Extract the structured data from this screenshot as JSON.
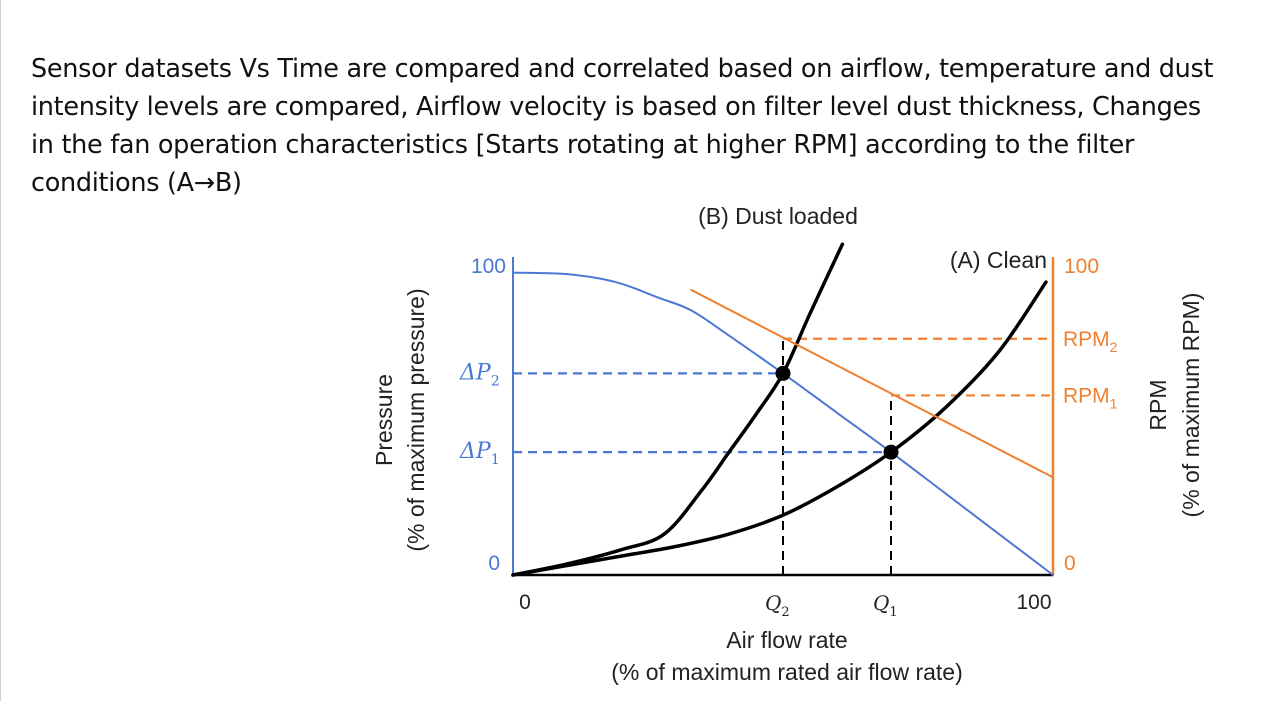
{
  "description": "Sensor datasets Vs Time are compared and correlated based on airflow, temperature and dust intensity levels are compared, Airflow velocity is based on filter level dust thickness, Changes in the fan operation characteristics [Starts rotating at higher RPM] according to the filter conditions (A→B)",
  "chart_data": {
    "type": "line",
    "xlabel": "Air flow rate",
    "xlabel_sub": "(% of maximum rated air flow rate)",
    "ylabel_left": "Pressure",
    "ylabel_left_sub": "(% of maximum pressure)",
    "ylabel_right": "RPM",
    "ylabel_right_sub": "(% of maximum RPM)",
    "xlim": [
      0,
      100
    ],
    "ylim_left": [
      0,
      100
    ],
    "ylim_right": [
      0,
      100
    ],
    "x_ticks": [
      "0",
      "100"
    ],
    "y_left_ticks": [
      "0",
      "100"
    ],
    "y_right_ticks": [
      "0",
      "100"
    ],
    "grid": false,
    "colors": {
      "pressure": "#4a78d4",
      "rpm": "#f08030",
      "system": "#000000"
    },
    "series": [
      {
        "name": "(B) Dust loaded",
        "color": "#000000",
        "points": [
          [
            0,
            0
          ],
          [
            10,
            3.5
          ],
          [
            20,
            8
          ],
          [
            28,
            13
          ],
          [
            35,
            27
          ],
          [
            40,
            39
          ],
          [
            45,
            51
          ],
          [
            50,
            64
          ],
          [
            55,
            83
          ],
          [
            61,
            105
          ]
        ]
      },
      {
        "name": "(A) Clean",
        "color": "#000000",
        "points": [
          [
            0,
            0
          ],
          [
            10,
            3
          ],
          [
            20,
            6
          ],
          [
            30,
            9
          ],
          [
            40,
            13
          ],
          [
            50,
            19
          ],
          [
            60,
            28
          ],
          [
            70,
            39
          ],
          [
            80,
            53
          ],
          [
            90,
            71
          ],
          [
            98.7,
            93
          ]
        ]
      },
      {
        "color": "#4a78d4",
        "axis": "left",
        "points": [
          [
            0,
            96
          ],
          [
            10,
            95.5
          ],
          [
            19,
            93
          ],
          [
            27,
            88
          ],
          [
            33,
            84
          ],
          [
            40,
            76
          ],
          [
            50,
            64
          ],
          [
            60,
            51.5
          ],
          [
            70,
            39
          ],
          [
            80,
            26
          ],
          [
            90,
            13
          ],
          [
            100,
            0
          ]
        ]
      },
      {
        "color": "#f08030",
        "axis": "right",
        "points": [
          [
            33,
            90.5
          ],
          [
            100,
            31
          ]
        ]
      }
    ],
    "operating_points": [
      {
        "x": 50,
        "y": 64,
        "x_label": "Q2",
        "y_label": "ΔP2",
        "rpm": 75,
        "rpm_label": "RPM2"
      },
      {
        "x": 70,
        "y": 39,
        "x_label": "Q1",
        "y_label": "ΔP1",
        "rpm": 57,
        "rpm_label": "RPM1"
      }
    ]
  }
}
